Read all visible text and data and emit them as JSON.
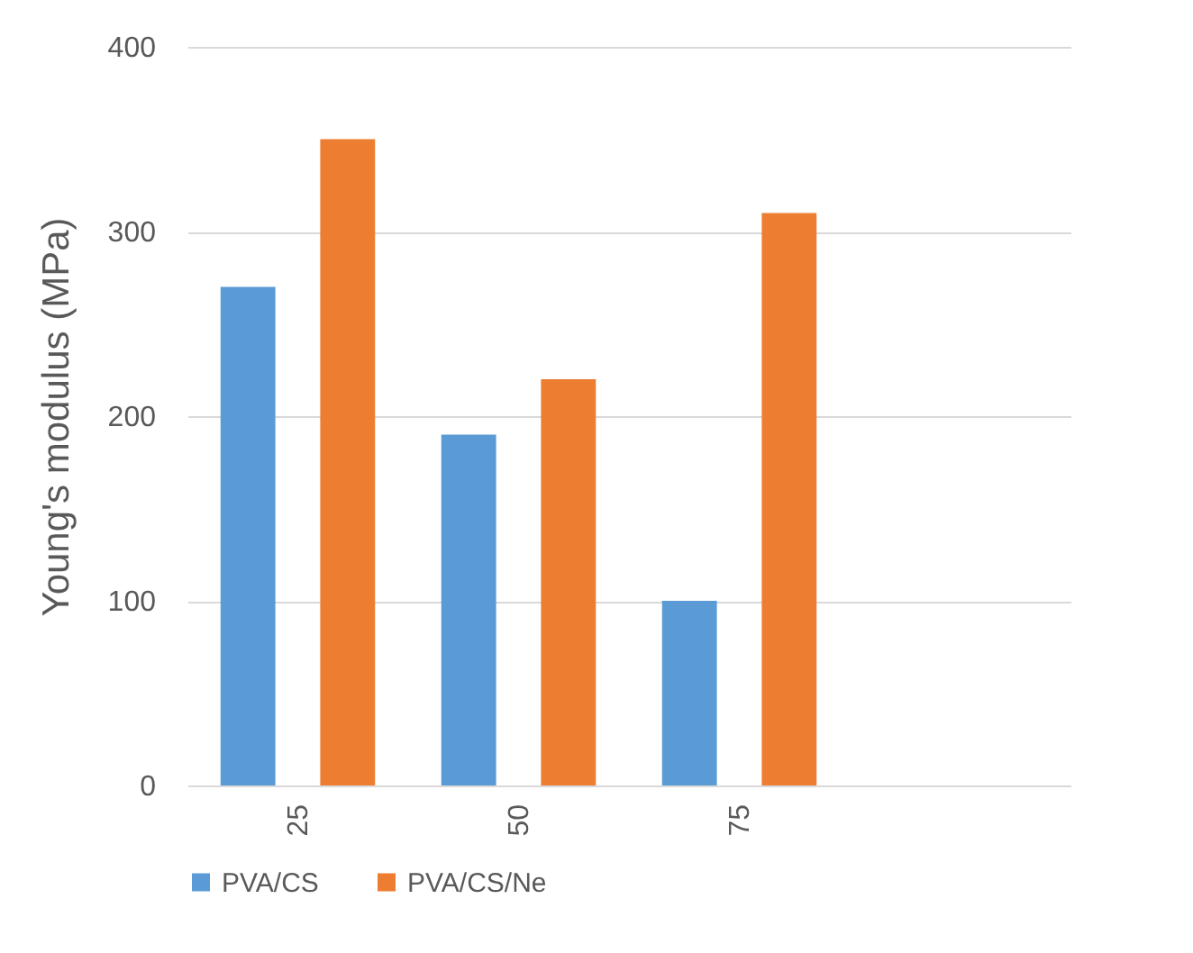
{
  "chart_data": {
    "type": "bar",
    "ylabel": "Young's modulus (MPa)",
    "categories": [
      "25",
      "50",
      "75",
      null
    ],
    "series": [
      {
        "name": "PVA/CS",
        "color": "#5b9bd5",
        "values": [
          270,
          190,
          100,
          null
        ]
      },
      {
        "name": "PVA/CS/Ne",
        "color": "#ed7d31",
        "values": [
          350,
          220,
          310,
          null
        ]
      }
    ],
    "ylim": [
      0,
      400
    ],
    "yticks": [
      0,
      100,
      200,
      300,
      400
    ],
    "grid": "y",
    "legend": "bottom"
  }
}
